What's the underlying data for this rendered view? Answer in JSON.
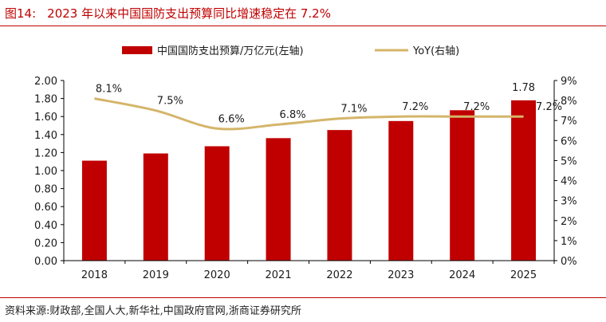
{
  "header": {
    "figure_number": "图14:",
    "title": "2023 年以来中国国防支出预算同比增速稳定在 7.2%"
  },
  "footer": {
    "source": "资料来源:财政部,全国人大,新华社,中国政府官网,浙商证券研究所"
  },
  "colors": {
    "accent": "#c00000",
    "bar": "#c00000",
    "line": "#d4b56a",
    "axis": "#000000",
    "text": "#1a1a1a"
  },
  "chart_data": {
    "type": "bar",
    "title": "",
    "categories": [
      "2018",
      "2019",
      "2020",
      "2021",
      "2022",
      "2023",
      "2024",
      "2025"
    ],
    "series": [
      {
        "name": "中国国防支出预算/万亿元(左轴)",
        "type": "bar",
        "axis": "left",
        "values": [
          1.11,
          1.19,
          1.27,
          1.36,
          1.45,
          1.55,
          1.67,
          1.78
        ]
      },
      {
        "name": "YoY(右轴)",
        "type": "line",
        "axis": "right",
        "values": [
          8.1,
          7.5,
          6.6,
          6.8,
          7.1,
          7.2,
          7.2,
          7.2
        ]
      }
    ],
    "bar_value_labels": [
      null,
      null,
      null,
      null,
      null,
      null,
      null,
      "1.78"
    ],
    "line_value_labels": [
      "8.1%",
      "7.5%",
      "6.6%",
      "6.8%",
      "7.1%",
      "7.2%",
      "7.2%",
      "7.2%"
    ],
    "left_axis": {
      "ylim": [
        0,
        2
      ],
      "ticks": [
        "0.00",
        "0.20",
        "0.40",
        "0.60",
        "0.80",
        "1.00",
        "1.20",
        "1.40",
        "1.60",
        "1.80",
        "2.00"
      ]
    },
    "right_axis": {
      "ylim": [
        0,
        9
      ],
      "ticks": [
        "0%",
        "1%",
        "2%",
        "3%",
        "4%",
        "5%",
        "6%",
        "7%",
        "8%",
        "9%"
      ]
    },
    "grid": false,
    "legend_position": "top-center"
  }
}
